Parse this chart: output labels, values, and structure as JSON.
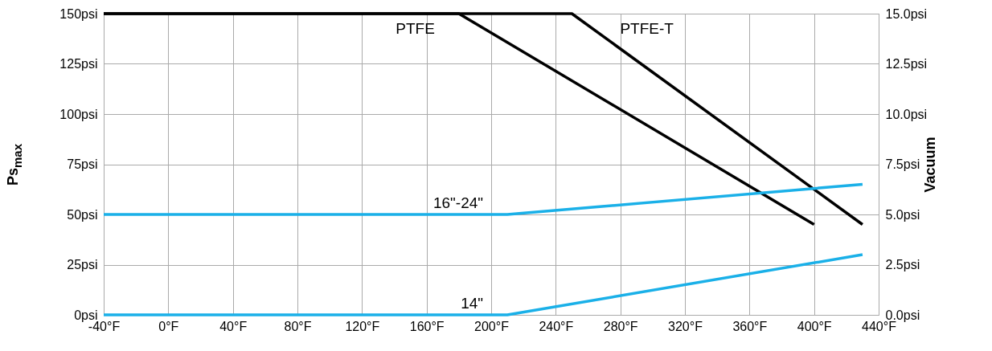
{
  "chart_data": {
    "type": "line",
    "ylabel": "Ps$_{max}$",
    "y2label": "Vacuum",
    "series": [
      {
        "name": "PTFE",
        "color": "#000000",
        "x": [
          -40,
          180,
          400
        ],
        "values": [
          150,
          150,
          45
        ]
      },
      {
        "name": "PTFE-T",
        "color": "#000000",
        "x": [
          -40,
          250,
          430
        ],
        "values": [
          150,
          150,
          45
        ]
      },
      {
        "name": "16\"-24\"",
        "color": "#1ab0e8",
        "x": [
          -40,
          210,
          430
        ],
        "values": [
          50,
          50,
          65
        ]
      },
      {
        "name": "14\"",
        "color": "#1ab0e8",
        "x": [
          -40,
          210,
          430
        ],
        "values": [
          0,
          0,
          30
        ]
      }
    ],
    "xlim": [
      -40,
      440
    ],
    "xticks": [
      {
        "value": -40,
        "label": "-40°F"
      },
      {
        "value": 0,
        "label": "0°F"
      },
      {
        "value": 40,
        "label": "40°F"
      },
      {
        "value": 80,
        "label": "80°F"
      },
      {
        "value": 120,
        "label": "120°F"
      },
      {
        "value": 160,
        "label": "160°F"
      },
      {
        "value": 200,
        "label": "200°F"
      },
      {
        "value": 240,
        "label": "240°F"
      },
      {
        "value": 280,
        "label": "280°F"
      },
      {
        "value": 320,
        "label": "320°F"
      },
      {
        "value": 360,
        "label": "360°F"
      },
      {
        "value": 400,
        "label": "400°F"
      },
      {
        "value": 440,
        "label": "440°F"
      }
    ],
    "ylim": [
      0,
      150
    ],
    "yticks": [
      {
        "value": 0,
        "label": "0psi"
      },
      {
        "value": 25,
        "label": "25psi"
      },
      {
        "value": 50,
        "label": "50psi"
      },
      {
        "value": 75,
        "label": "75psi"
      },
      {
        "value": 100,
        "label": "100psi"
      },
      {
        "value": 125,
        "label": "125psi"
      },
      {
        "value": 150,
        "label": "150psi"
      }
    ],
    "y2lim": [
      0,
      15
    ],
    "y2ticks": [
      {
        "value": 0,
        "label": "0.0psi"
      },
      {
        "value": 2.5,
        "label": "2.5psi"
      },
      {
        "value": 5,
        "label": "5.0psi"
      },
      {
        "value": 7.5,
        "label": "7.5psi"
      },
      {
        "value": 10,
        "label": "10.0psi"
      },
      {
        "value": 12.5,
        "label": "12.5psi"
      },
      {
        "value": 15,
        "label": "15.0psi"
      }
    ],
    "grid": true,
    "marker": "none",
    "line_style": "solid"
  }
}
